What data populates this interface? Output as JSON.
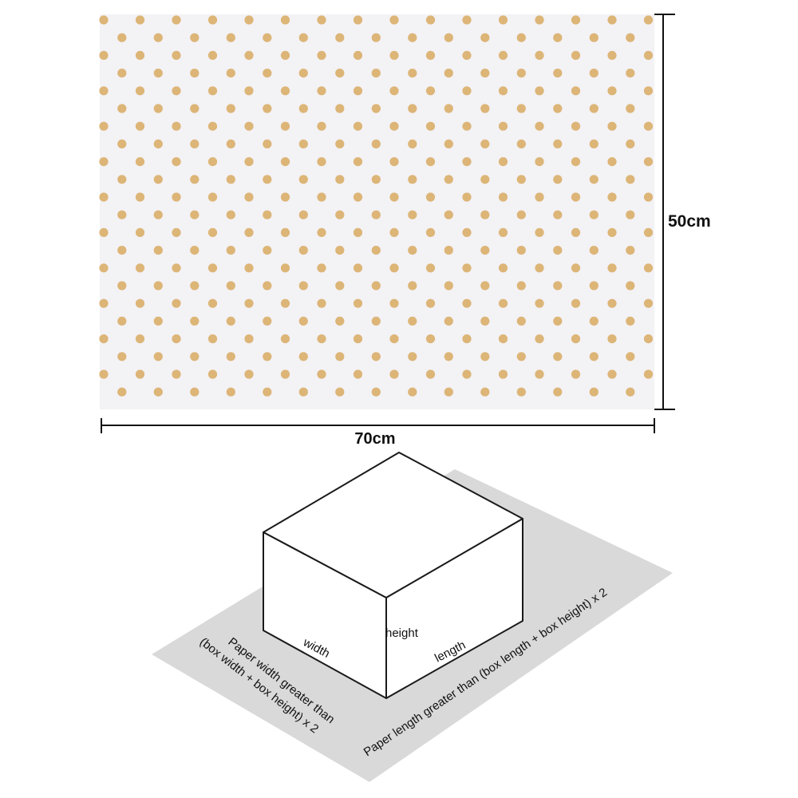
{
  "paper_sheet": {
    "background_color": "#f3f2f5",
    "dot_color": "#dcb577",
    "pattern": "polka dots"
  },
  "dimensions": {
    "width_label": "70cm",
    "height_label": "50cm"
  },
  "wrapping_diagram": {
    "mat_color": "#d9d9d9",
    "box_labels": {
      "width": "width",
      "length": "length",
      "height": "height"
    },
    "instructions": {
      "paper_width_line1": "Paper width greater than",
      "paper_width_line2": "(box width + box height) x 2",
      "paper_length": "Paper length greater than (box length + box height) x 2"
    }
  }
}
